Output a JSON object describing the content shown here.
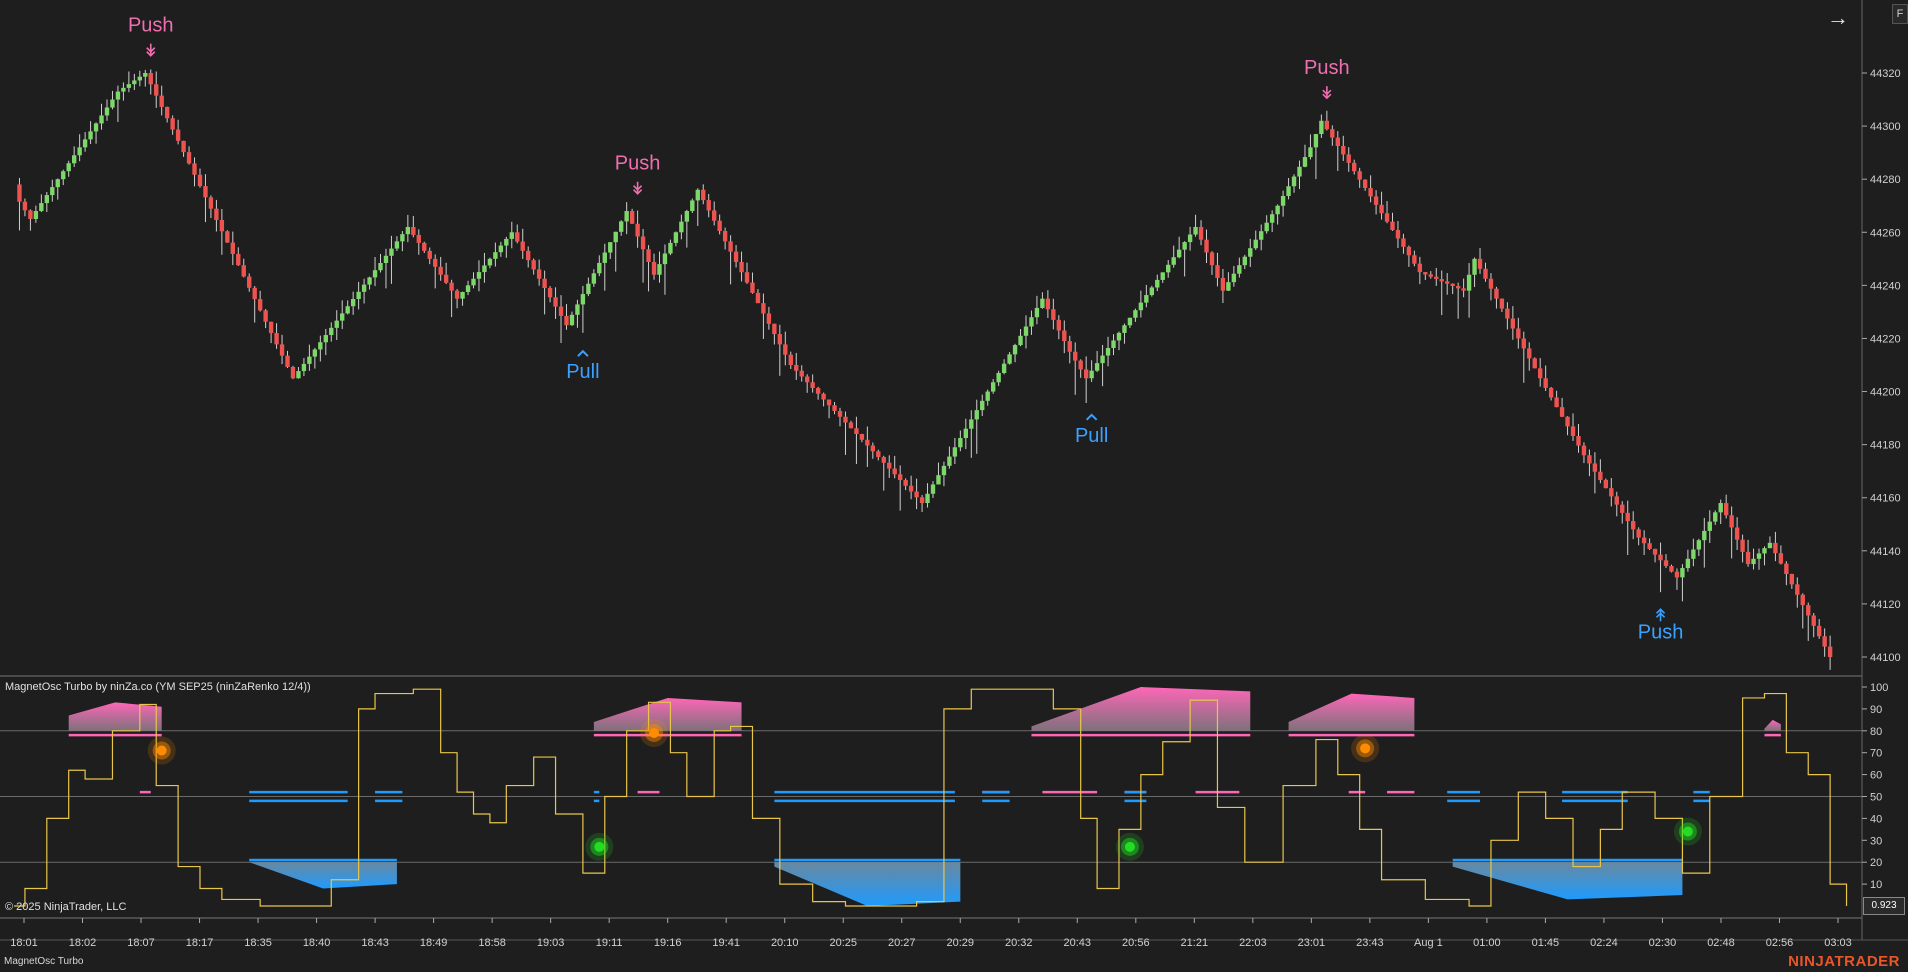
{
  "header": {
    "nav_arrow_icon": "arrow-right-icon",
    "f_label": "F"
  },
  "indicator": {
    "title": "MagnetOsc Turbo by ninZa.co (YM SEP25 (ninZaRenko 12/4))",
    "copyright": "© 2025 NinjaTrader, LLC",
    "current_value": "0.923",
    "tab_label": "MagnetOsc Turbo"
  },
  "brand": "NINJATRADER",
  "colors": {
    "background": "#1e1e1e",
    "up_candle": "#7dd86a",
    "down_candle": "#ef5350",
    "push_top": "#f06fb0",
    "push_bottom": "#3ba1ff",
    "oscillator_line": "#e8c64a",
    "magnet_high": "#ff66b8",
    "magnet_low": "#1e9bff",
    "dot_orange": "#ff8c00",
    "dot_green": "#22dd22"
  },
  "chart_data": [
    {
      "type": "candlestick",
      "instrument": "YM SEP25",
      "bar_type": "ninZaRenko 12/4",
      "y_ticks": [
        44100,
        44120,
        44140,
        44160,
        44180,
        44200,
        44220,
        44240,
        44260,
        44280,
        44300,
        44320
      ],
      "ylim": [
        44094,
        44342
      ],
      "price_path": [
        [
          0,
          44278,
          44265
        ],
        [
          4,
          44265,
          44278
        ],
        [
          20,
          44313,
          44313
        ],
        [
          25,
          44320,
          44320
        ],
        [
          52,
          44205,
          44205
        ],
        [
          73,
          44262,
          44262
        ],
        [
          82,
          44235,
          44235
        ],
        [
          92,
          44260,
          44260
        ],
        [
          102,
          44225,
          44225
        ],
        [
          113,
          44268,
          44268
        ],
        [
          118,
          44244,
          44244
        ],
        [
          126,
          44276,
          44276
        ],
        [
          143,
          44210,
          44210
        ],
        [
          167,
          44158,
          44158
        ],
        [
          189,
          44235,
          44235
        ],
        [
          194,
          44215,
          44215
        ],
        [
          197,
          44205,
          44205
        ],
        [
          217,
          44262,
          44262
        ],
        [
          222,
          44238,
          44238
        ],
        [
          232,
          44270,
          44270
        ],
        [
          238,
          44292,
          44292
        ],
        [
          240,
          44302,
          44302
        ],
        [
          258,
          44245,
          44245
        ],
        [
          266,
          44238,
          44238
        ],
        [
          268,
          44250,
          44250
        ],
        [
          280,
          44205,
          44205
        ],
        [
          288,
          44176,
          44176
        ],
        [
          298,
          44145,
          44145
        ],
        [
          305,
          44130,
          44130
        ],
        [
          313,
          44158,
          44158
        ],
        [
          318,
          44135,
          44135
        ],
        [
          322,
          44143,
          44143
        ],
        [
          333,
          44100,
          44100
        ]
      ],
      "time_labels": [
        "18:01",
        "18:02",
        "18:07",
        "18:17",
        "18:35",
        "18:40",
        "18:43",
        "18:49",
        "18:58",
        "19:03",
        "19:11",
        "19:16",
        "19:41",
        "20:10",
        "20:25",
        "20:27",
        "20:29",
        "20:32",
        "20:43",
        "20:56",
        "21:21",
        "22:03",
        "23:01",
        "23:43",
        "Aug 1",
        "01:00",
        "01:45",
        "02:24",
        "02:30",
        "02:48",
        "02:56",
        "03:03"
      ],
      "signals": [
        {
          "label": "Push",
          "side": "top",
          "bar": 25,
          "price": 44322
        },
        {
          "label": "Push",
          "side": "top",
          "bar": 114,
          "price": 44270
        },
        {
          "label": "Pull",
          "side": "bottom",
          "bar": 104,
          "price": 44222
        },
        {
          "label": "Push",
          "side": "top",
          "bar": 240,
          "price": 44306
        },
        {
          "label": "Pull",
          "side": "bottom",
          "bar": 197,
          "price": 44198
        },
        {
          "label": "Push",
          "side": "bottom",
          "bar": 301,
          "price": 44124
        }
      ]
    },
    {
      "type": "line",
      "name": "MagnetOsc Turbo",
      "y_ticks": [
        10,
        20,
        30,
        40,
        50,
        60,
        70,
        80,
        90,
        100
      ],
      "ylim": [
        0,
        100
      ],
      "levels": [
        20,
        50,
        80
      ],
      "osc_path": [
        [
          0,
          0
        ],
        [
          2,
          8
        ],
        [
          6,
          40
        ],
        [
          10,
          62
        ],
        [
          13,
          58
        ],
        [
          18,
          80
        ],
        [
          23,
          92
        ],
        [
          26,
          55
        ],
        [
          30,
          18
        ],
        [
          34,
          8
        ],
        [
          38,
          3
        ],
        [
          45,
          0
        ],
        [
          54,
          0
        ],
        [
          58,
          12
        ],
        [
          63,
          90
        ],
        [
          66,
          97
        ],
        [
          73,
          99
        ],
        [
          78,
          70
        ],
        [
          81,
          52
        ],
        [
          84,
          42
        ],
        [
          87,
          38
        ],
        [
          90,
          55
        ],
        [
          95,
          68
        ],
        [
          99,
          42
        ],
        [
          104,
          15
        ],
        [
          108,
          50
        ],
        [
          112,
          80
        ],
        [
          116,
          93
        ],
        [
          120,
          70
        ],
        [
          123,
          50
        ],
        [
          128,
          80
        ],
        [
          131,
          82
        ],
        [
          135,
          40
        ],
        [
          140,
          10
        ],
        [
          146,
          2
        ],
        [
          152,
          0
        ],
        [
          160,
          0
        ],
        [
          165,
          2
        ],
        [
          170,
          90
        ],
        [
          175,
          99
        ],
        [
          185,
          99
        ],
        [
          190,
          90
        ],
        [
          195,
          40
        ],
        [
          198,
          8
        ],
        [
          202,
          35
        ],
        [
          206,
          60
        ],
        [
          210,
          75
        ],
        [
          215,
          94
        ],
        [
          220,
          45
        ],
        [
          225,
          20
        ],
        [
          232,
          55
        ],
        [
          238,
          76
        ],
        [
          242,
          60
        ],
        [
          246,
          35
        ],
        [
          250,
          12
        ],
        [
          258,
          3
        ],
        [
          266,
          0
        ],
        [
          270,
          30
        ],
        [
          275,
          52
        ],
        [
          280,
          40
        ],
        [
          285,
          18
        ],
        [
          290,
          35
        ],
        [
          294,
          52
        ],
        [
          300,
          40
        ],
        [
          305,
          15
        ],
        [
          310,
          50
        ],
        [
          316,
          95
        ],
        [
          320,
          97
        ],
        [
          324,
          70
        ],
        [
          328,
          60
        ],
        [
          332,
          10
        ],
        [
          335,
          0
        ]
      ],
      "high_zones": [
        [
          10,
          27,
          87,
          93
        ],
        [
          106,
          133,
          84,
          95
        ],
        [
          186,
          226,
          82,
          100
        ],
        [
          233,
          256,
          84,
          97
        ],
        [
          320,
          323,
          81,
          85
        ]
      ],
      "low_zones": [
        [
          43,
          70,
          8,
          20
        ],
        [
          139,
          173,
          0,
          18
        ],
        [
          263,
          305,
          3,
          18
        ]
      ],
      "mid_high_marks": [
        [
          23,
          25
        ],
        [
          114,
          118
        ],
        [
          177,
          182
        ],
        [
          188,
          198
        ],
        [
          203,
          207
        ],
        [
          216,
          224
        ],
        [
          244,
          247
        ],
        [
          251,
          256
        ]
      ],
      "mid_low_marks": [
        [
          43,
          61
        ],
        [
          66,
          71
        ],
        [
          106,
          107
        ],
        [
          139,
          172
        ],
        [
          177,
          182
        ],
        [
          203,
          207
        ],
        [
          262,
          268
        ],
        [
          283,
          295
        ],
        [
          307,
          310
        ]
      ],
      "sell_dots": [
        [
          27,
          71
        ],
        [
          117,
          79
        ],
        [
          247,
          72
        ]
      ],
      "buy_dots": [
        [
          107,
          27
        ],
        [
          204,
          27
        ],
        [
          306,
          34
        ]
      ]
    }
  ]
}
